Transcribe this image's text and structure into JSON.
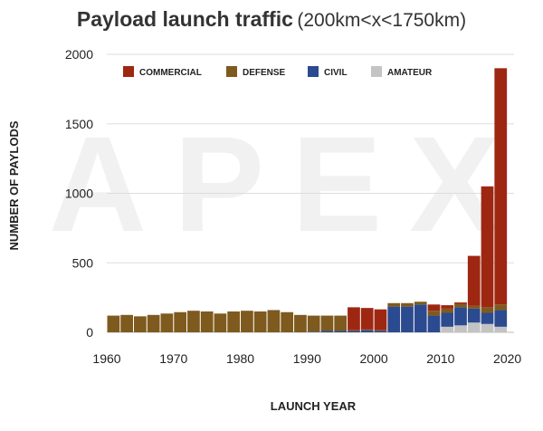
{
  "title": {
    "main": "Payload launch traffic",
    "sub": "(200km<x<1750km)"
  },
  "watermark": "APEX",
  "chart_data": {
    "type": "bar",
    "stacked": true,
    "xlabel": "LAUNCH YEAR",
    "ylabel": "NUMBER OF PAYLODS",
    "ylim": [
      0,
      2000
    ],
    "yticks": [
      0,
      500,
      1000,
      1500,
      2000
    ],
    "xticks": [
      1960,
      1970,
      1980,
      1990,
      2000,
      2010,
      2020
    ],
    "xlim": [
      1960,
      2021
    ],
    "bar_width_years": 2,
    "grid": "horizontal",
    "legend_position": "top",
    "x": [
      1960,
      1962,
      1964,
      1966,
      1968,
      1970,
      1972,
      1974,
      1976,
      1978,
      1980,
      1982,
      1984,
      1986,
      1988,
      1990,
      1992,
      1994,
      1996,
      1998,
      2000,
      2002,
      2004,
      2006,
      2008,
      2010,
      2012,
      2014,
      2016,
      2018
    ],
    "series": [
      {
        "name": "AMATEUR",
        "color": "#c3c3c3",
        "values": [
          0,
          0,
          0,
          0,
          0,
          0,
          0,
          0,
          0,
          0,
          0,
          0,
          0,
          0,
          0,
          0,
          0,
          0,
          0,
          0,
          0,
          0,
          0,
          0,
          0,
          40,
          50,
          70,
          60,
          40
        ]
      },
      {
        "name": "CIVIL",
        "color": "#2b4a8f",
        "values": [
          0,
          0,
          0,
          0,
          0,
          0,
          0,
          0,
          0,
          0,
          0,
          0,
          0,
          0,
          0,
          5,
          10,
          10,
          10,
          15,
          10,
          185,
          185,
          200,
          120,
          100,
          130,
          100,
          80,
          120
        ]
      },
      {
        "name": "DEFENSE",
        "color": "#7f5a1e",
        "values": [
          120,
          125,
          115,
          125,
          135,
          145,
          155,
          150,
          135,
          150,
          155,
          150,
          160,
          145,
          125,
          115,
          110,
          110,
          5,
          5,
          5,
          25,
          25,
          20,
          35,
          30,
          25,
          20,
          40,
          40
        ]
      },
      {
        "name": "COMMERCIAL",
        "color": "#9e2712",
        "values": [
          0,
          0,
          0,
          0,
          0,
          0,
          0,
          0,
          0,
          0,
          0,
          0,
          0,
          0,
          0,
          0,
          0,
          0,
          165,
          155,
          150,
          0,
          0,
          0,
          45,
          25,
          10,
          360,
          870,
          1700
        ]
      }
    ]
  }
}
